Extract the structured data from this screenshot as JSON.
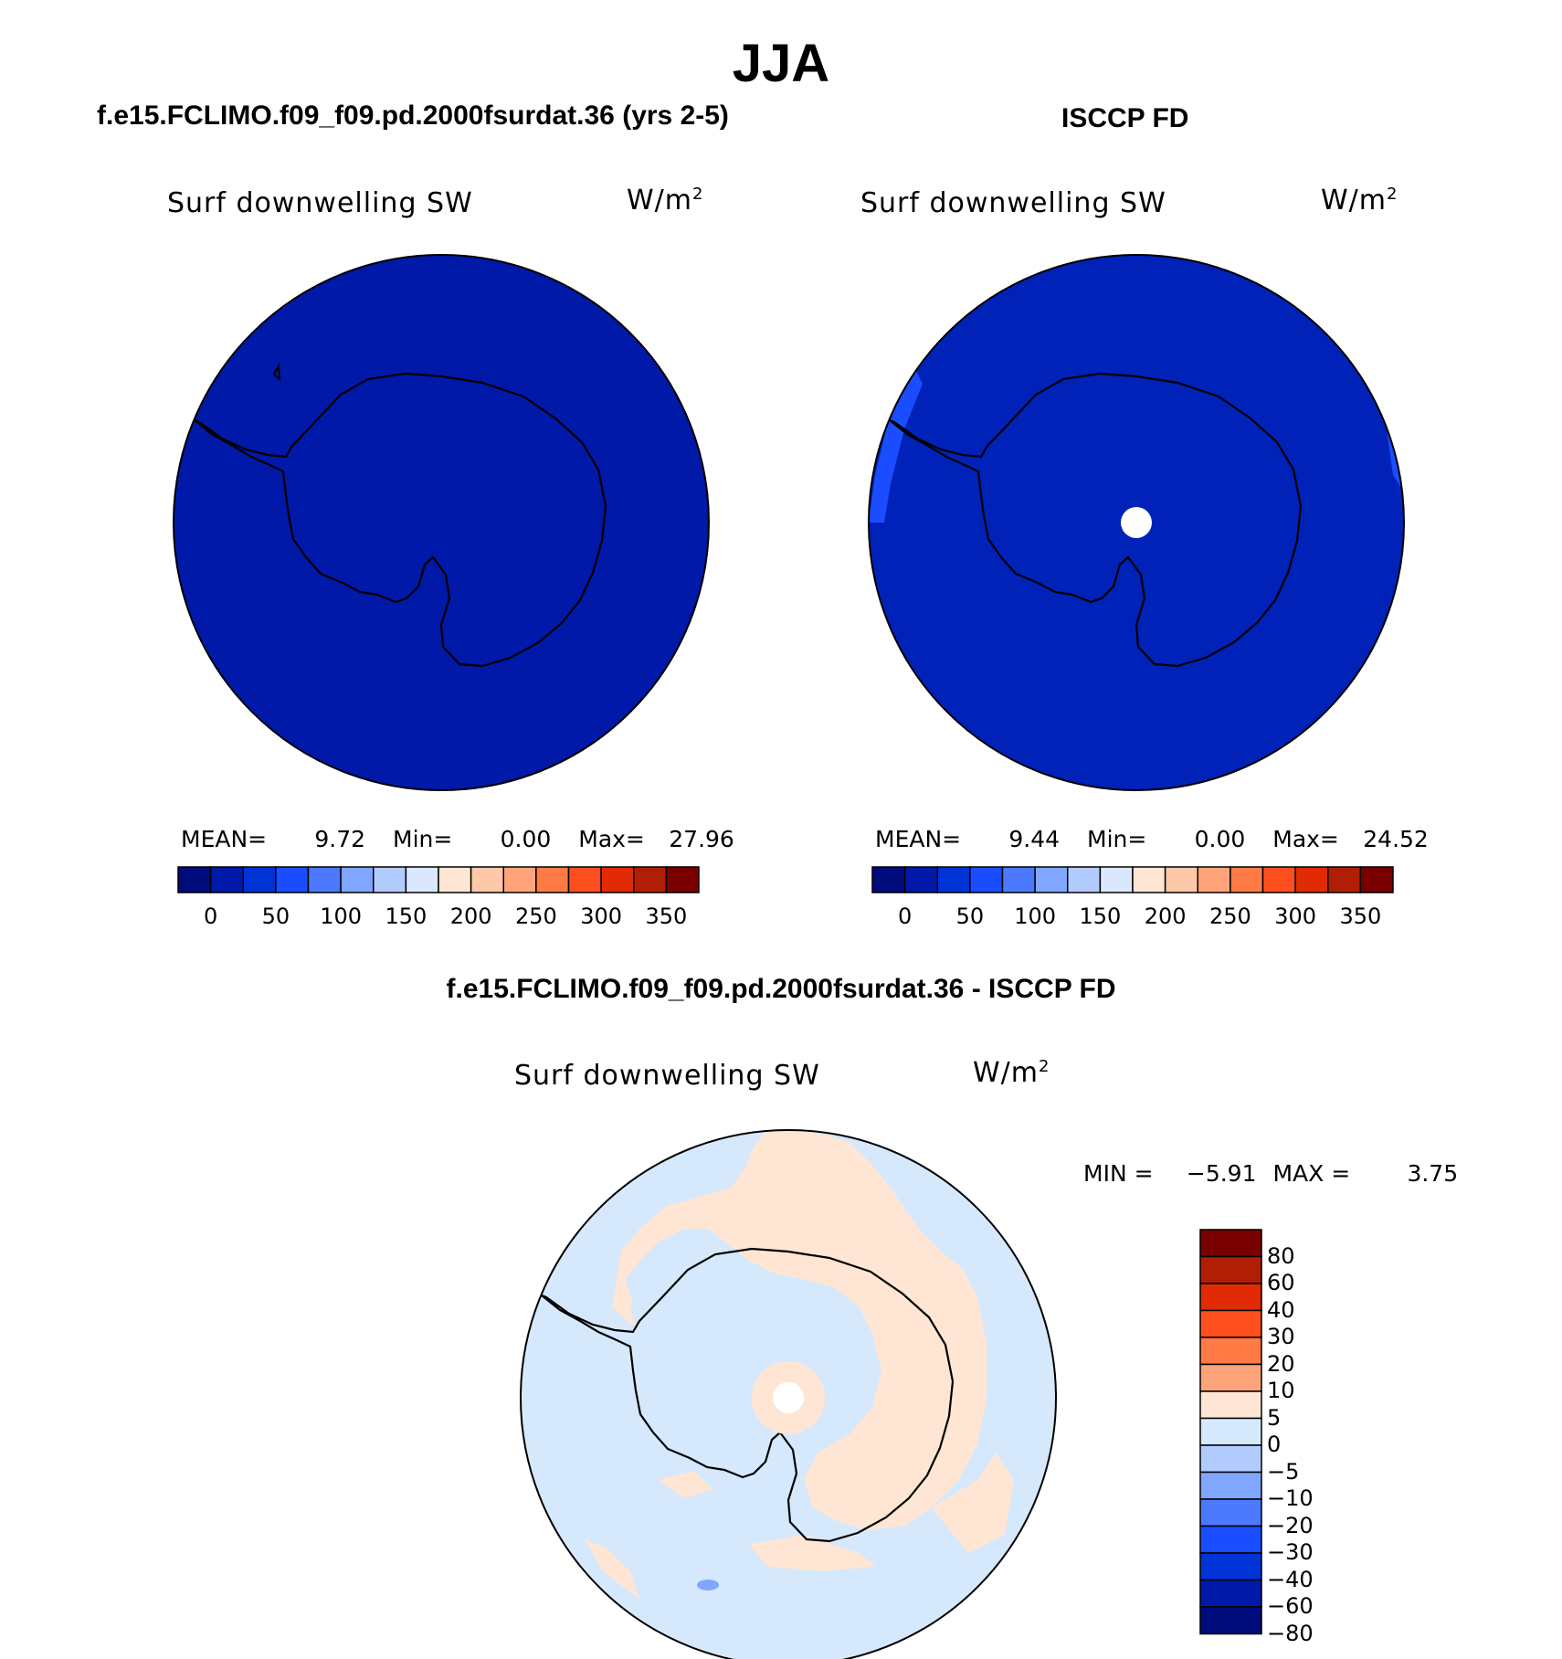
{
  "title": "JJA",
  "panels": {
    "top_left": {
      "case_title": "f.e15.FCLIMO.f09_f09.pd.2000fsurdat.36 (yrs 2-5)",
      "variable": "Surf downwelling SW",
      "units_base": "W/m",
      "units_exp": "2",
      "stats": {
        "mean_label": "MEAN=",
        "mean": "9.72",
        "min_label": "Min=",
        "min": "0.00",
        "max_label": "Max=",
        "max": "27.96"
      }
    },
    "top_right": {
      "case_title": "ISCCP FD",
      "variable": "Surf downwelling SW",
      "units_base": "W/m",
      "units_exp": "2",
      "stats": {
        "mean_label": "MEAN=",
        "mean": "9.44",
        "min_label": "Min=",
        "min": "0.00",
        "max_label": "Max=",
        "max": "24.52"
      }
    },
    "bottom": {
      "case_title": "f.e15.FCLIMO.f09_f09.pd.2000fsurdat.36 - ISCCP FD",
      "variable": "Surf downwelling SW",
      "units_base": "W/m",
      "units_exp": "2",
      "stats": {
        "min_label": "MIN =",
        "min": "−5.91",
        "max_label": "MAX =",
        "max": "3.75"
      }
    }
  },
  "colorbars": {
    "abs": {
      "colors": [
        "#000c7b",
        "#0019a8",
        "#0033d6",
        "#1a4dff",
        "#4d79ff",
        "#80a6ff",
        "#b3ccff",
        "#d9e8ff",
        "#ffe6d4",
        "#ffc8a8",
        "#ffa47a",
        "#ff7a45",
        "#ff4f1f",
        "#e02b05",
        "#b01f05",
        "#7a0000"
      ],
      "tick_labels": [
        "0",
        "50",
        "100",
        "150",
        "200",
        "250",
        "300",
        "350"
      ]
    },
    "diff": {
      "colors": [
        "#7a0000",
        "#b01f05",
        "#e02b05",
        "#ff4f1f",
        "#ff7a45",
        "#ffa47a",
        "#ffe6d4",
        "#d6e8fb",
        "#b3ccff",
        "#80a6ff",
        "#4d79ff",
        "#1a4dff",
        "#0033d6",
        "#0019a8",
        "#000c7b"
      ],
      "tick_labels": [
        "80",
        "60",
        "40",
        "30",
        "20",
        "10",
        "5",
        "0",
        "−5",
        "−10",
        "−20",
        "−30",
        "−40",
        "−60",
        "−80"
      ]
    }
  },
  "map_colors": {
    "model_field": "#0019a8",
    "obs_field": "#0022b8",
    "obs_edge": "#1a4dff",
    "diff_negative": "#d6e8fb",
    "diff_positive": "#ffe6d4",
    "diff_patch": "#80a6ff",
    "missing": "#ffffff"
  }
}
